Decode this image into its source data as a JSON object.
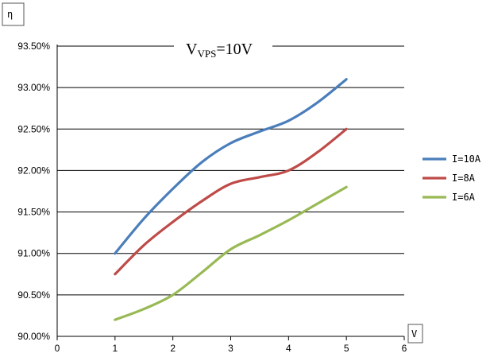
{
  "chart_data": {
    "type": "line",
    "title": {
      "main": "V",
      "sub": "VPS",
      "rest": "=10V"
    },
    "ylabel": "η",
    "xlabel": "V",
    "xlim": [
      0,
      6
    ],
    "ylim": [
      90.0,
      93.5
    ],
    "x_ticks": [
      "0",
      "1",
      "2",
      "3",
      "4",
      "5",
      "6"
    ],
    "y_ticks": [
      "93.50%",
      "93.00%",
      "92.50%",
      "92.00%",
      "91.50%",
      "91.00%",
      "90.50%",
      "90.00%"
    ],
    "grid": true,
    "legend_position": "right",
    "series": [
      {
        "name": "I=10A",
        "color": "#4A7EBB",
        "x": [
          1,
          1.5,
          2,
          2.5,
          3,
          3.5,
          4,
          4.5,
          5
        ],
        "y": [
          91.0,
          91.42,
          91.78,
          92.1,
          92.33,
          92.47,
          92.6,
          92.82,
          93.1
        ]
      },
      {
        "name": "I=8A",
        "color": "#BE4B48",
        "x": [
          1,
          1.5,
          2,
          2.5,
          3,
          3.5,
          4,
          4.5,
          5
        ],
        "y": [
          90.75,
          91.1,
          91.38,
          91.63,
          91.84,
          91.92,
          92.0,
          92.22,
          92.5
        ]
      },
      {
        "name": "I=6A",
        "color": "#98B954",
        "x": [
          1,
          1.5,
          2,
          2.5,
          3,
          3.5,
          4,
          4.5,
          5
        ],
        "y": [
          90.2,
          90.33,
          90.5,
          90.77,
          91.05,
          91.22,
          91.4,
          91.6,
          91.8
        ]
      }
    ]
  }
}
